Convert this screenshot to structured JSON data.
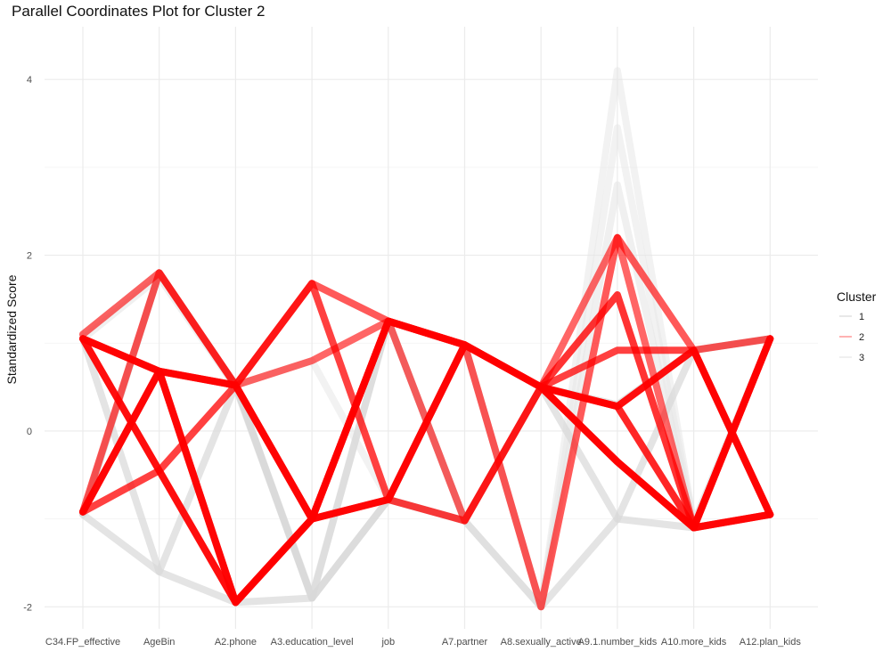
{
  "chart_data": {
    "type": "parallel-coordinates",
    "title": "Parallel Coordinates Plot for Cluster 2",
    "ylabel": "Standardized Score",
    "xlabel": "",
    "ylim": [
      -2.25,
      4.6
    ],
    "yticks": [
      -2,
      0,
      2,
      4
    ],
    "grid": true,
    "legend": {
      "title": "Cluster",
      "position": "right",
      "entries": [
        "1",
        "2",
        "3"
      ]
    },
    "colors": {
      "cluster1": "#d9d9d9",
      "cluster2": "#ff0000",
      "cluster3": "#e6e6e6",
      "grid": "#ebebeb"
    },
    "axes": [
      "C34.FP_effective",
      "AgeBin",
      "A2.phone",
      "A3.education_level",
      "job",
      "A7.partner",
      "A8.sexually_active",
      "A9.1.number_kids",
      "A10.more_kids",
      "A12.plan_kids"
    ],
    "series": [
      {
        "cluster": "3",
        "alpha": 0.5,
        "values": [
          1.1,
          1.8,
          0.52,
          -1.88,
          1.25,
          -1.02,
          -2.0,
          4.1,
          -1.05,
          1.05
        ]
      },
      {
        "cluster": "3",
        "alpha": 0.5,
        "values": [
          -0.95,
          1.8,
          0.52,
          0.8,
          -0.78,
          0.98,
          -2.0,
          3.45,
          -1.05,
          1.05
        ]
      },
      {
        "cluster": "3",
        "alpha": 0.6,
        "values": [
          1.05,
          1.75,
          0.5,
          -1.9,
          1.25,
          0.98,
          -2.0,
          2.8,
          -1.05,
          1.05
        ]
      },
      {
        "cluster": "1",
        "alpha": 0.7,
        "values": [
          1.05,
          -1.6,
          -1.95,
          -1.9,
          -0.78,
          -1.02,
          0.5,
          -1.0,
          -1.1,
          1.05
        ]
      },
      {
        "cluster": "1",
        "alpha": 0.7,
        "values": [
          -0.95,
          1.8,
          0.52,
          -1.9,
          1.25,
          -1.02,
          -2.0,
          -1.0,
          0.92,
          1.05
        ]
      },
      {
        "cluster": "1",
        "alpha": 0.7,
        "values": [
          -0.95,
          -1.6,
          0.52,
          -1.9,
          -0.78,
          -1.02,
          0.5,
          0.3,
          0.92,
          1.05
        ]
      },
      {
        "cluster": "2",
        "alpha": 0.6,
        "values": [
          1.1,
          1.8,
          0.52,
          0.8,
          1.25,
          -1.02,
          0.5,
          2.2,
          -1.1,
          1.05
        ]
      },
      {
        "cluster": "2",
        "alpha": 0.65,
        "values": [
          -0.92,
          1.8,
          0.52,
          1.68,
          1.25,
          0.98,
          -2.0,
          2.2,
          0.92,
          1.05
        ]
      },
      {
        "cluster": "2",
        "alpha": 0.75,
        "values": [
          -0.92,
          -0.45,
          0.52,
          1.68,
          -0.78,
          -1.02,
          0.5,
          0.92,
          0.92,
          -0.95
        ]
      },
      {
        "cluster": "2",
        "alpha": 0.8,
        "values": [
          -0.92,
          0.68,
          -1.95,
          -1.0,
          -0.78,
          0.98,
          0.5,
          1.55,
          -1.1,
          -0.95
        ]
      },
      {
        "cluster": "2",
        "alpha": 0.85,
        "values": [
          1.05,
          0.68,
          0.52,
          -1.0,
          1.25,
          0.98,
          0.5,
          0.28,
          -1.1,
          1.05
        ]
      },
      {
        "cluster": "2",
        "alpha": 0.9,
        "values": [
          1.05,
          0.68,
          -1.95,
          -1.0,
          1.25,
          0.98,
          0.5,
          -0.35,
          -1.1,
          -0.95
        ]
      },
      {
        "cluster": "2",
        "alpha": 0.95,
        "values": [
          1.05,
          -0.45,
          -1.95,
          -1.0,
          1.25,
          0.98,
          0.5,
          0.28,
          0.92,
          -0.95
        ]
      },
      {
        "cluster": "2",
        "alpha": 0.9,
        "values": [
          -0.92,
          0.68,
          0.52,
          -1.0,
          -0.78,
          0.98,
          0.5,
          -0.35,
          -1.1,
          1.05
        ]
      }
    ]
  }
}
